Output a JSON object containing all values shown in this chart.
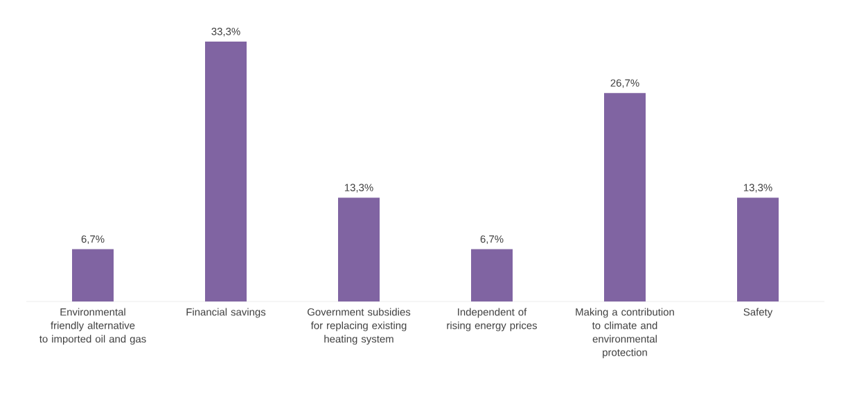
{
  "chart_data": {
    "type": "bar",
    "categories": [
      "Environmental friendly alternative to imported oil and gas",
      "Financial savings",
      "Government subsidies for replacing existing heating system",
      "Independent of rising energy prices",
      "Making a contribution to climate and environmental protection",
      "Safety"
    ],
    "values": [
      6.7,
      33.3,
      13.3,
      6.7,
      26.7,
      13.3
    ],
    "value_labels": [
      "6,7%",
      "33,3%",
      "13,3%",
      "6,7%",
      "26,7%",
      "13,3%"
    ],
    "color": "#8064a2"
  }
}
